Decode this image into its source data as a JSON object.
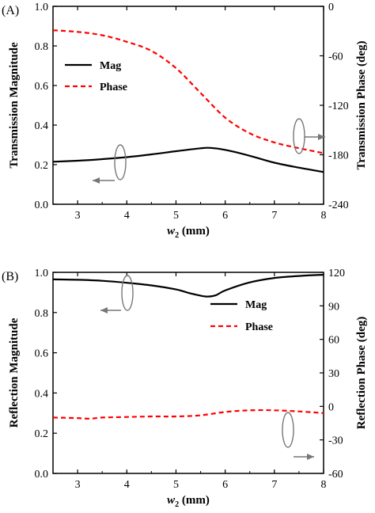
{
  "chart_data": [
    {
      "type": "line",
      "panel_label": "(A)",
      "xlabel_main": "w",
      "xlabel_sub": "2",
      "xlabel_unit": " (mm)",
      "xlim": [
        2.5,
        8
      ],
      "xticks": [
        3,
        4,
        5,
        6,
        7,
        8
      ],
      "ylabel_left": "Transmission Magnitude",
      "ylim_left": [
        0.0,
        1.0
      ],
      "yticks_left": [
        "0.0",
        "0.2",
        "0.4",
        "0.6",
        "0.8",
        "1.0"
      ],
      "ylabel_right": "Transmission Phase (deg)",
      "ylim_right": [
        -240,
        0
      ],
      "yticks_right": [
        "-240",
        "-180",
        "-120",
        "-60",
        "0"
      ],
      "legend_position": "top-left",
      "grid": false,
      "series": [
        {
          "name": "Mag",
          "axis": "left",
          "color": "#000000",
          "style": "solid",
          "x": [
            2.5,
            3.0,
            3.5,
            4.0,
            4.5,
            5.0,
            5.5,
            5.7,
            6.0,
            6.5,
            7.0,
            7.5,
            8.0
          ],
          "y": [
            0.215,
            0.22,
            0.228,
            0.238,
            0.252,
            0.268,
            0.283,
            0.285,
            0.275,
            0.245,
            0.21,
            0.185,
            0.163
          ]
        },
        {
          "name": "Phase",
          "axis": "right",
          "color": "#ff0000",
          "style": "dashed",
          "x": [
            2.5,
            3.0,
            3.5,
            4.0,
            4.5,
            5.0,
            5.5,
            6.0,
            6.5,
            7.0,
            7.5,
            8.0
          ],
          "y": [
            -29,
            -31,
            -35,
            -43,
            -54,
            -75,
            -105,
            -135,
            -154,
            -165,
            -172,
            -178
          ]
        }
      ]
    },
    {
      "type": "line",
      "panel_label": "(B)",
      "xlabel_main": "w",
      "xlabel_sub": "2",
      "xlabel_unit": " (mm)",
      "xlim": [
        2.5,
        8
      ],
      "xticks": [
        3,
        4,
        5,
        6,
        7,
        8
      ],
      "ylabel_left": "Reflection Magnitude",
      "ylim_left": [
        0.0,
        1.0
      ],
      "yticks_left": [
        "0.0",
        "0.2",
        "0.4",
        "0.6",
        "0.8",
        "1.0"
      ],
      "ylabel_right": "Reflection Phase (deg)",
      "ylim_right": [
        -60,
        120
      ],
      "yticks_right": [
        "-60",
        "-30",
        "0",
        "30",
        "60",
        "90",
        "120"
      ],
      "legend_position": "top-right",
      "grid": false,
      "series": [
        {
          "name": "Mag",
          "axis": "left",
          "color": "#000000",
          "style": "solid",
          "x": [
            2.5,
            3.0,
            3.5,
            4.0,
            4.5,
            5.0,
            5.3,
            5.6,
            5.8,
            6.0,
            6.5,
            7.0,
            7.5,
            8.0
          ],
          "y": [
            0.965,
            0.963,
            0.958,
            0.948,
            0.935,
            0.915,
            0.895,
            0.88,
            0.885,
            0.91,
            0.95,
            0.972,
            0.982,
            0.988
          ]
        },
        {
          "name": "Phase",
          "axis": "right",
          "color": "#ff0000",
          "style": "dashed",
          "x": [
            2.5,
            3.0,
            3.25,
            3.5,
            4.0,
            4.5,
            5.0,
            5.5,
            6.0,
            6.5,
            7.0,
            7.5,
            8.0
          ],
          "y": [
            -10,
            -10.5,
            -11,
            -10,
            -9.5,
            -9,
            -9,
            -8,
            -5,
            -3.5,
            -3.5,
            -4.5,
            -6
          ]
        }
      ]
    }
  ]
}
